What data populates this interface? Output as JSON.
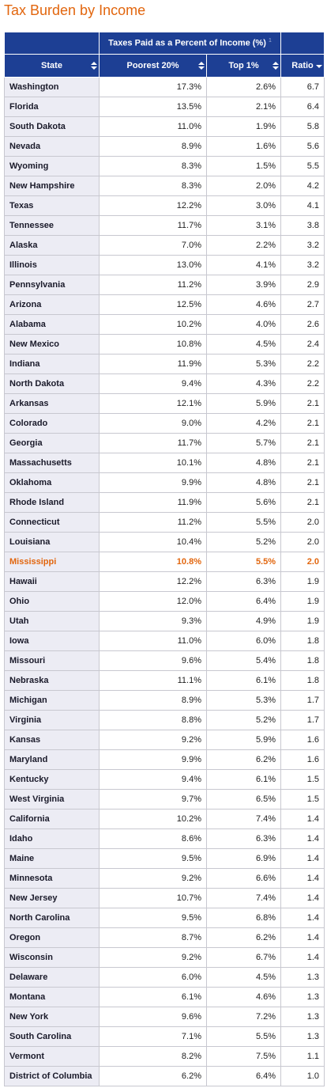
{
  "header": {
    "title": "Tax Burden by Income"
  },
  "table": {
    "group_header": "Taxes Paid as a Percent of Income (%)",
    "group_header_note": "1",
    "columns": [
      "State",
      "Poorest 20%",
      "Top 1%",
      "Ratio"
    ],
    "highlight_row": 24,
    "rows": [
      [
        "Washington",
        "17.3%",
        "2.6%",
        "6.7"
      ],
      [
        "Florida",
        "13.5%",
        "2.1%",
        "6.4"
      ],
      [
        "South Dakota",
        "11.0%",
        "1.9%",
        "5.8"
      ],
      [
        "Nevada",
        "8.9%",
        "1.6%",
        "5.6"
      ],
      [
        "Wyoming",
        "8.3%",
        "1.5%",
        "5.5"
      ],
      [
        "New Hampshire",
        "8.3%",
        "2.0%",
        "4.2"
      ],
      [
        "Texas",
        "12.2%",
        "3.0%",
        "4.1"
      ],
      [
        "Tennessee",
        "11.7%",
        "3.1%",
        "3.8"
      ],
      [
        "Alaska",
        "7.0%",
        "2.2%",
        "3.2"
      ],
      [
        "Illinois",
        "13.0%",
        "4.1%",
        "3.2"
      ],
      [
        "Pennsylvania",
        "11.2%",
        "3.9%",
        "2.9"
      ],
      [
        "Arizona",
        "12.5%",
        "4.6%",
        "2.7"
      ],
      [
        "Alabama",
        "10.2%",
        "4.0%",
        "2.6"
      ],
      [
        "New Mexico",
        "10.8%",
        "4.5%",
        "2.4"
      ],
      [
        "Indiana",
        "11.9%",
        "5.3%",
        "2.2"
      ],
      [
        "North Dakota",
        "9.4%",
        "4.3%",
        "2.2"
      ],
      [
        "Arkansas",
        "12.1%",
        "5.9%",
        "2.1"
      ],
      [
        "Colorado",
        "9.0%",
        "4.2%",
        "2.1"
      ],
      [
        "Georgia",
        "11.7%",
        "5.7%",
        "2.1"
      ],
      [
        "Massachusetts",
        "10.1%",
        "4.8%",
        "2.1"
      ],
      [
        "Oklahoma",
        "9.9%",
        "4.8%",
        "2.1"
      ],
      [
        "Rhode Island",
        "11.9%",
        "5.6%",
        "2.1"
      ],
      [
        "Connecticut",
        "11.2%",
        "5.5%",
        "2.0"
      ],
      [
        "Louisiana",
        "10.4%",
        "5.2%",
        "2.0"
      ],
      [
        "Mississippi",
        "10.8%",
        "5.5%",
        "2.0"
      ],
      [
        "Hawaii",
        "12.2%",
        "6.3%",
        "1.9"
      ],
      [
        "Ohio",
        "12.0%",
        "6.4%",
        "1.9"
      ],
      [
        "Utah",
        "9.3%",
        "4.9%",
        "1.9"
      ],
      [
        "Iowa",
        "11.0%",
        "6.0%",
        "1.8"
      ],
      [
        "Missouri",
        "9.6%",
        "5.4%",
        "1.8"
      ],
      [
        "Nebraska",
        "11.1%",
        "6.1%",
        "1.8"
      ],
      [
        "Michigan",
        "8.9%",
        "5.3%",
        "1.7"
      ],
      [
        "Virginia",
        "8.8%",
        "5.2%",
        "1.7"
      ],
      [
        "Kansas",
        "9.2%",
        "5.9%",
        "1.6"
      ],
      [
        "Maryland",
        "9.9%",
        "6.2%",
        "1.6"
      ],
      [
        "Kentucky",
        "9.4%",
        "6.1%",
        "1.5"
      ],
      [
        "West Virginia",
        "9.7%",
        "6.5%",
        "1.5"
      ],
      [
        "California",
        "10.2%",
        "7.4%",
        "1.4"
      ],
      [
        "Idaho",
        "8.6%",
        "6.3%",
        "1.4"
      ],
      [
        "Maine",
        "9.5%",
        "6.9%",
        "1.4"
      ],
      [
        "Minnesota",
        "9.2%",
        "6.6%",
        "1.4"
      ],
      [
        "New Jersey",
        "10.7%",
        "7.4%",
        "1.4"
      ],
      [
        "North Carolina",
        "9.5%",
        "6.8%",
        "1.4"
      ],
      [
        "Oregon",
        "8.7%",
        "6.2%",
        "1.4"
      ],
      [
        "Wisconsin",
        "9.2%",
        "6.7%",
        "1.4"
      ],
      [
        "Delaware",
        "6.0%",
        "4.5%",
        "1.3"
      ],
      [
        "Montana",
        "6.1%",
        "4.6%",
        "1.3"
      ],
      [
        "New York",
        "9.6%",
        "7.2%",
        "1.3"
      ],
      [
        "South Carolina",
        "7.1%",
        "5.5%",
        "1.3"
      ],
      [
        "Vermont",
        "8.2%",
        "7.5%",
        "1.1"
      ],
      [
        "District of Columbia",
        "6.2%",
        "6.4%",
        "1.0"
      ]
    ]
  }
}
